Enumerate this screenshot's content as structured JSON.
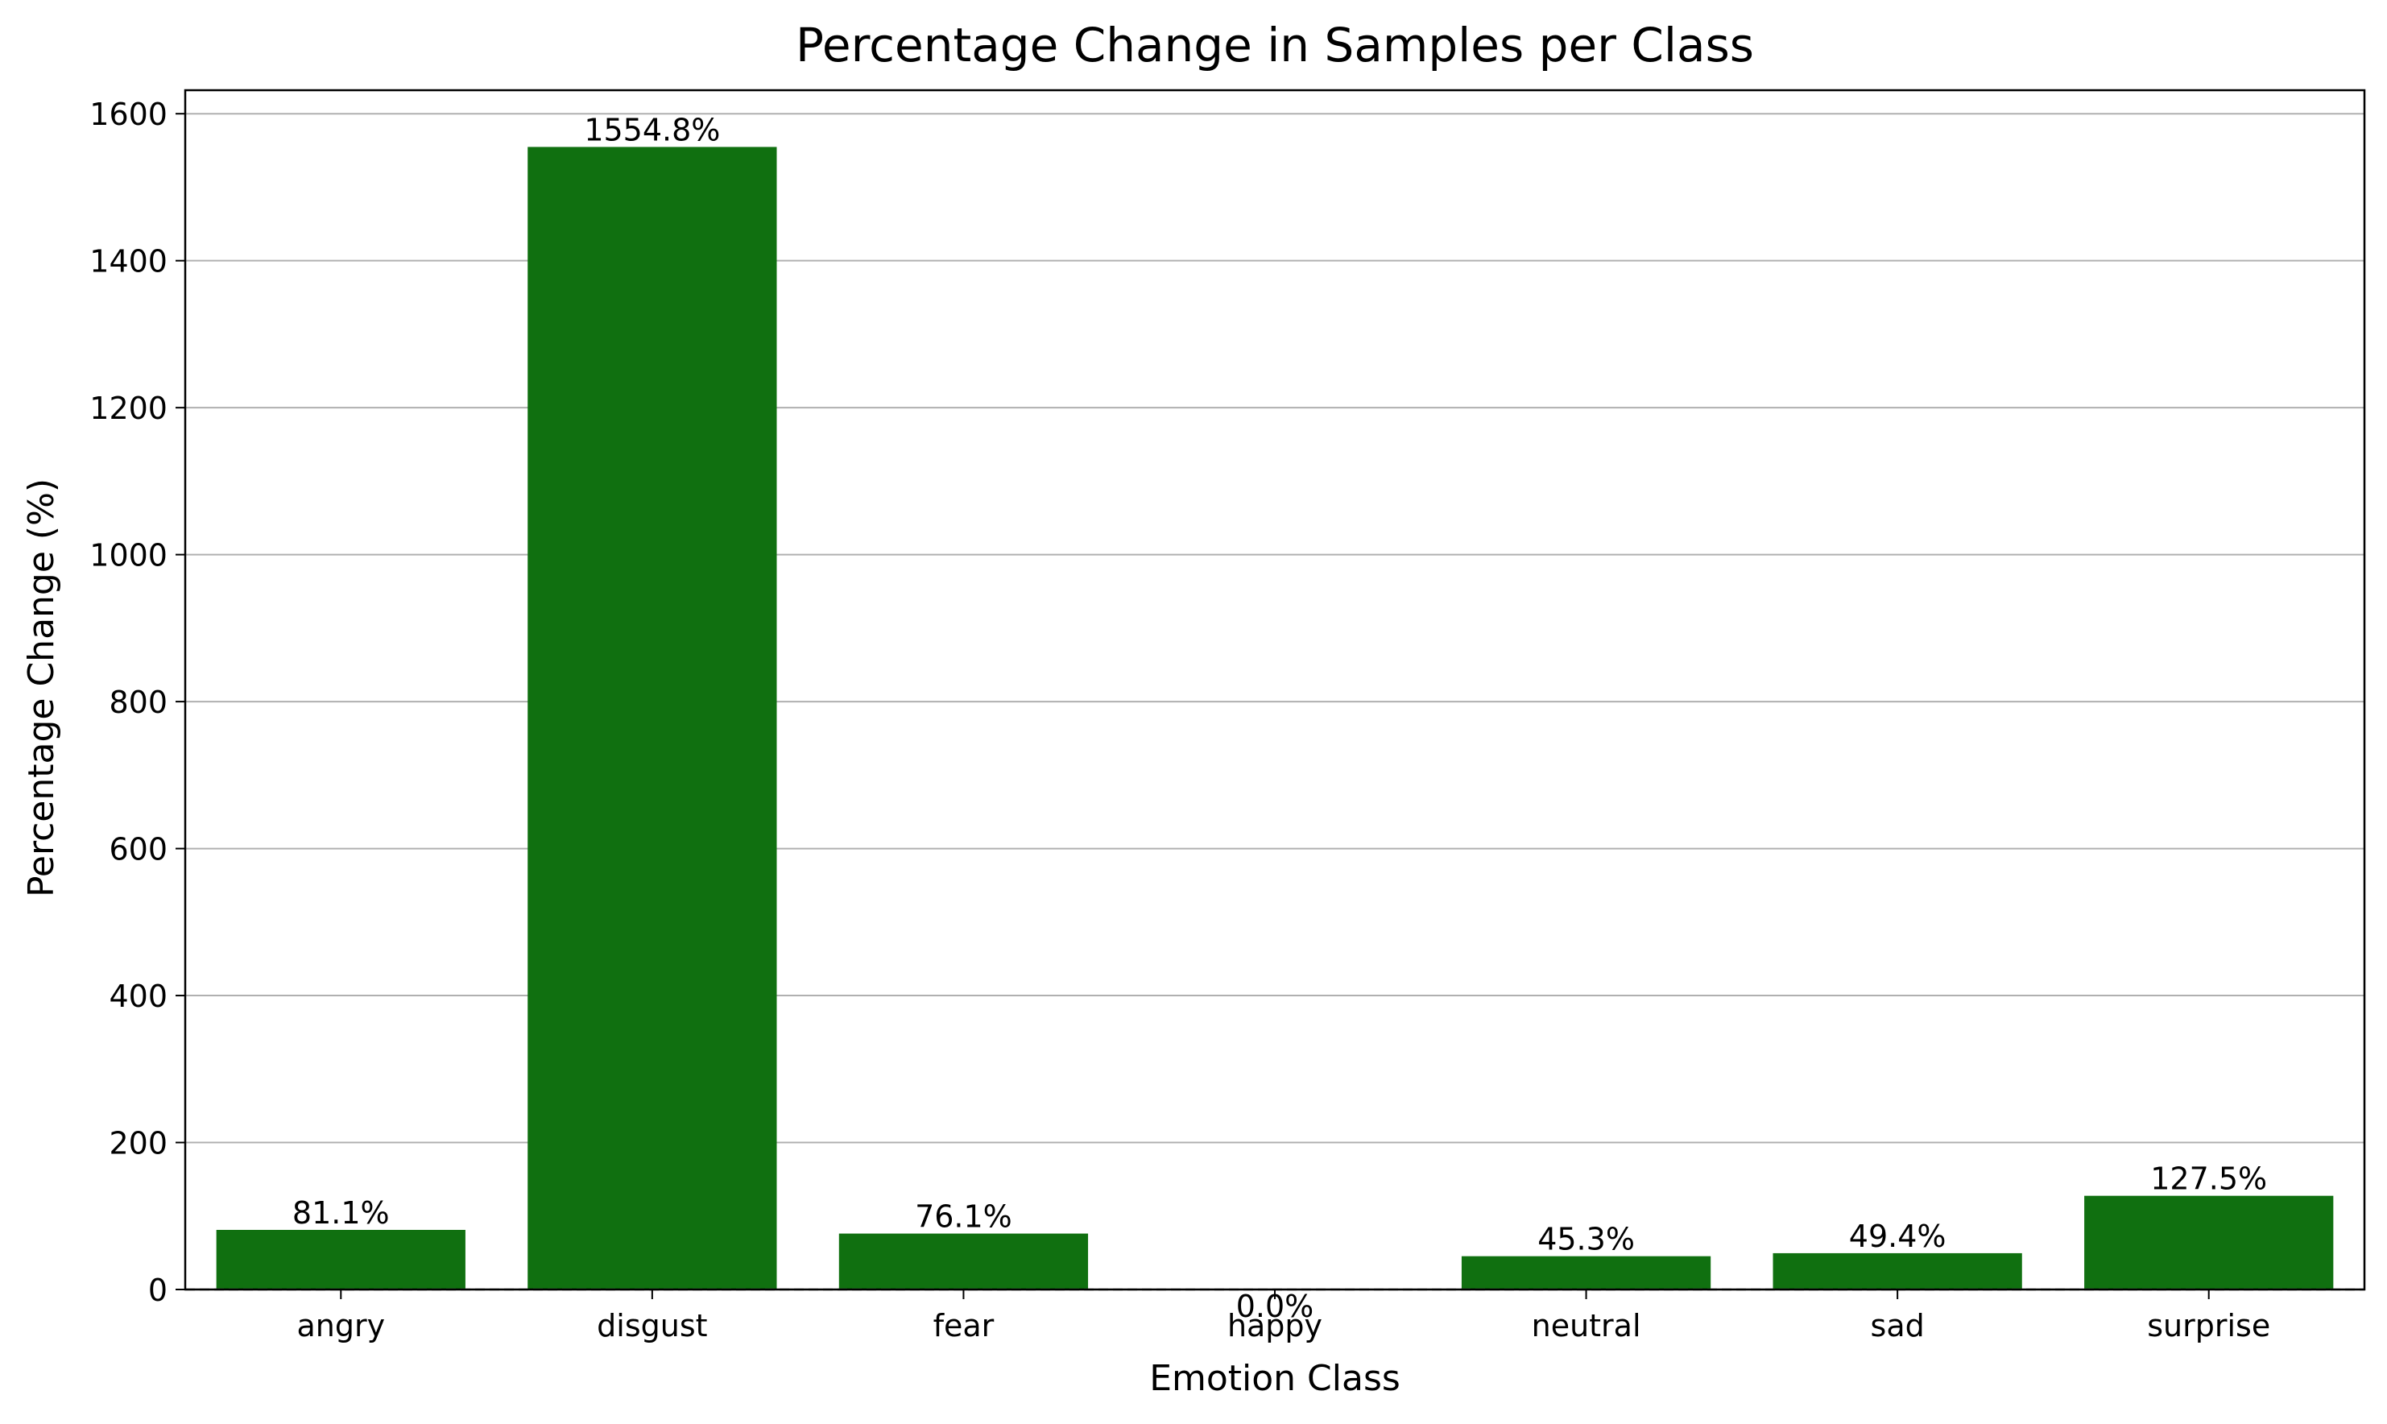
{
  "chart_data": {
    "type": "bar",
    "title": "Percentage Change in Samples per Class",
    "xlabel": "Emotion Class",
    "ylabel": "Percentage Change (%)",
    "categories": [
      "angry",
      "disgust",
      "fear",
      "happy",
      "neutral",
      "sad",
      "surprise"
    ],
    "values": [
      81.1,
      1554.8,
      76.1,
      0.0,
      45.3,
      49.4,
      127.5
    ],
    "data_labels": [
      "81.1%",
      "1554.8%",
      "76.1%",
      "0.0%",
      "45.3%",
      "49.4%",
      "127.5%"
    ],
    "yticks": [
      0,
      200,
      400,
      600,
      800,
      1000,
      1200,
      1400,
      1600
    ],
    "ylim": [
      0,
      1632
    ],
    "grid": "horizontal",
    "reference_line": 0,
    "colors": {
      "bar": "#107010",
      "grid": "#b0b0b0",
      "reference_line": "#808080"
    }
  }
}
